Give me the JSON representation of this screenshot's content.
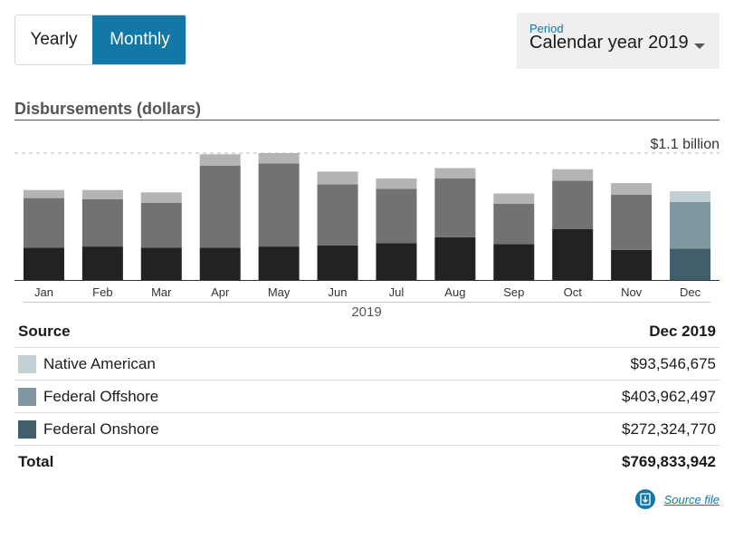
{
  "toggle": {
    "yearly_label": "Yearly",
    "monthly_label": "Monthly"
  },
  "period": {
    "label": "Period",
    "value": "Calendar year 2019"
  },
  "section_title": "Disbursements (dollars)",
  "chart_data": {
    "type": "bar",
    "stacked": true,
    "categories": [
      "Jan",
      "Feb",
      "Mar",
      "Apr",
      "May",
      "Jun",
      "Jul",
      "Aug",
      "Sep",
      "Oct",
      "Nov",
      "Dec"
    ],
    "series": [
      {
        "name": "Federal Onshore",
        "values": [
          280000000,
          290000000,
          280000000,
          280000000,
          290000000,
          300000000,
          320000000,
          370000000,
          310000000,
          440000000,
          260000000,
          272324770
        ],
        "color": "#222222",
        "highlight_color": "#435e6b"
      },
      {
        "name": "Federal Offshore",
        "values": [
          430000000,
          410000000,
          390000000,
          710000000,
          720000000,
          530000000,
          470000000,
          510000000,
          350000000,
          420000000,
          480000000,
          403962497
        ],
        "color": "#727272",
        "highlight_color": "#7f979f"
      },
      {
        "name": "Native American",
        "values": [
          70000000,
          80000000,
          90000000,
          100000000,
          90000000,
          110000000,
          90000000,
          90000000,
          90000000,
          100000000,
          100000000,
          93546675
        ],
        "color": "#b4b4b4",
        "highlight_color": "#c2cfd3"
      }
    ],
    "highlight_index": 11,
    "max_label": "$1.1 billion",
    "ylim": [
      0,
      1100000000
    ],
    "xlabel": "2019",
    "grid": false
  },
  "table": {
    "header": {
      "source": "Source",
      "period": "Dec 2019"
    },
    "rows": [
      {
        "label": "Native American",
        "value": "$93,546,675",
        "color": "#c2cfd3"
      },
      {
        "label": "Federal Offshore",
        "value": "$403,962,497",
        "color": "#7f979f"
      },
      {
        "label": "Federal Onshore",
        "value": "$272,324,770",
        "color": "#435e6b"
      }
    ],
    "total": {
      "label": "Total",
      "value": "$769,833,942"
    }
  },
  "source_file_label": "Source file"
}
